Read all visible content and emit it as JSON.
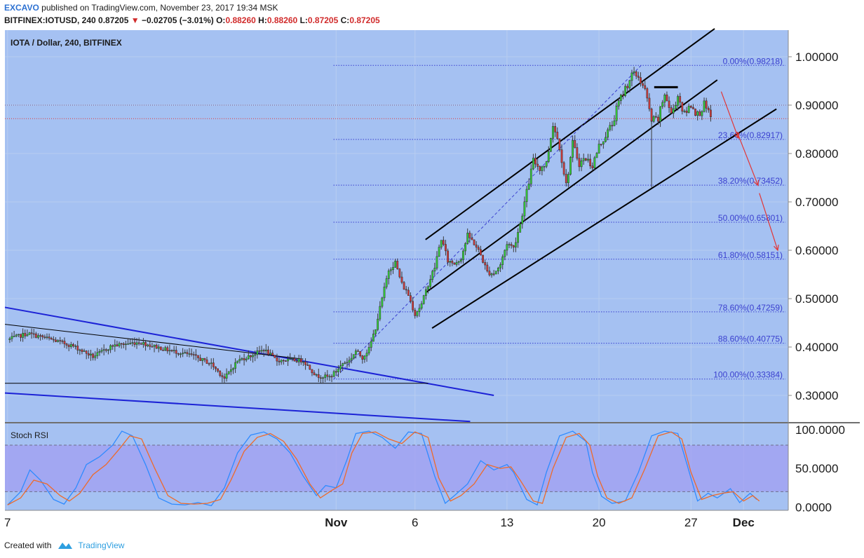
{
  "header": {
    "author": "EXCAVO",
    "published_text": "published on TradingView.com, November 23, 2017 19:34 MSK",
    "symbol": "BITFINEX:IOTUSD, 240",
    "last": "0.87205",
    "change": "−0.02705 (−3.01%)",
    "open_label": "O:",
    "open": "0.88260",
    "high_label": "H:",
    "high": "0.88260",
    "low_label": "L:",
    "low": "0.87205",
    "close_label": "C:",
    "close": "0.87205"
  },
  "footer": {
    "created_with": "Created with",
    "brand": "TradingView"
  },
  "colors": {
    "background": "#a5c1f2",
    "up_candle": "#33d438",
    "down_candle": "#d63a3a",
    "fib": "#3a3fcf",
    "channel": "#000000",
    "wedge": "#1c22d6",
    "stoch_k": "#2f8bff",
    "stoch_d": "#ee6a2a",
    "stoch_band": "#a29ef2",
    "arrow": "#e33535"
  },
  "chart_data": [
    {
      "type": "candlestick",
      "title": "IOTA / Dollar, 240, BITFINEX",
      "ylim": [
        0.245,
        1.055
      ],
      "y_ticks": [
        "1.00000",
        "0.90000",
        "0.80000",
        "0.70000",
        "0.60000",
        "0.50000",
        "0.40000",
        "0.30000"
      ],
      "x_ticks": [
        "7",
        "Nov",
        "6",
        "13",
        "20",
        "27",
        "Dec"
      ],
      "x_tick_days": [
        -25,
        0,
        6,
        13,
        20,
        27,
        31
      ],
      "xlim": [
        -25.2,
        34.4
      ],
      "fib_levels": [
        {
          "label": "0.00%",
          "value": 0.98218
        },
        {
          "label": "23.60%",
          "value": 0.82917
        },
        {
          "label": "38.20%",
          "value": 0.73452
        },
        {
          "label": "50.00%",
          "value": 0.65801
        },
        {
          "label": "61.80%",
          "value": 0.58151
        },
        {
          "label": "78.60%",
          "value": 0.47259
        },
        {
          "label": "88.60%",
          "value": 0.40775
        },
        {
          "label": "100.00%",
          "value": 0.33384
        }
      ],
      "price_path": [
        [
          -25.0,
          0.415
        ],
        [
          -23.5,
          0.428
        ],
        [
          -22.0,
          0.418
        ],
        [
          -20.0,
          0.402
        ],
        [
          -18.5,
          0.38
        ],
        [
          -17.0,
          0.403
        ],
        [
          -15.0,
          0.41
        ],
        [
          -13.0,
          0.395
        ],
        [
          -11.0,
          0.383
        ],
        [
          -9.5,
          0.365
        ],
        [
          -8.5,
          0.335
        ],
        [
          -7.5,
          0.372
        ],
        [
          -6.5,
          0.382
        ],
        [
          -5.5,
          0.395
        ],
        [
          -4.5,
          0.372
        ],
        [
          -3.5,
          0.373
        ],
        [
          -2.5,
          0.372
        ],
        [
          -1.5,
          0.34
        ],
        [
          -0.5,
          0.338
        ],
        [
          0.0,
          0.35
        ],
        [
          0.5,
          0.366
        ],
        [
          1.0,
          0.372
        ],
        [
          1.5,
          0.392
        ],
        [
          2.0,
          0.378
        ],
        [
          2.5,
          0.396
        ],
        [
          3.0,
          0.44
        ],
        [
          3.5,
          0.5
        ],
        [
          4.0,
          0.56
        ],
        [
          4.5,
          0.575
        ],
        [
          5.0,
          0.53
        ],
        [
          5.5,
          0.508
        ],
        [
          6.0,
          0.468
        ],
        [
          6.5,
          0.488
        ],
        [
          7.0,
          0.53
        ],
        [
          7.5,
          0.565
        ],
        [
          8.0,
          0.625
        ],
        [
          8.5,
          0.578
        ],
        [
          9.0,
          0.573
        ],
        [
          9.5,
          0.585
        ],
        [
          10.0,
          0.63
        ],
        [
          10.5,
          0.615
        ],
        [
          11.0,
          0.59
        ],
        [
          11.5,
          0.555
        ],
        [
          12.0,
          0.552
        ],
        [
          12.5,
          0.57
        ],
        [
          13.0,
          0.615
        ],
        [
          13.5,
          0.605
        ],
        [
          14.0,
          0.655
        ],
        [
          14.5,
          0.72
        ],
        [
          15.0,
          0.785
        ],
        [
          15.5,
          0.77
        ],
        [
          16.0,
          0.78
        ],
        [
          16.5,
          0.862
        ],
        [
          17.0,
          0.815
        ],
        [
          17.5,
          0.735
        ],
        [
          18.0,
          0.82
        ],
        [
          18.5,
          0.78
        ],
        [
          19.0,
          0.79
        ],
        [
          19.5,
          0.775
        ],
        [
          20.0,
          0.815
        ],
        [
          20.5,
          0.838
        ],
        [
          21.0,
          0.86
        ],
        [
          21.5,
          0.905
        ],
        [
          22.0,
          0.935
        ],
        [
          22.5,
          0.962
        ],
        [
          23.0,
          0.96
        ],
        [
          23.5,
          0.93
        ],
        [
          24.0,
          0.868
        ],
        [
          24.5,
          0.87
        ],
        [
          25.0,
          0.925
        ],
        [
          25.5,
          0.88
        ],
        [
          26.0,
          0.92
        ],
        [
          26.5,
          0.88
        ],
        [
          27.0,
          0.902
        ],
        [
          27.5,
          0.88
        ],
        [
          28.0,
          0.9
        ],
        [
          28.5,
          0.872
        ]
      ],
      "channel_upper": [
        [
          6.8,
          0.622
        ],
        [
          28.8,
          1.058
        ]
      ],
      "channel_middle": [
        [
          6.8,
          0.512
        ],
        [
          29.0,
          0.952
        ]
      ],
      "channel_lower": [
        [
          7.3,
          0.439
        ],
        [
          33.5,
          0.892
        ]
      ],
      "wedge_upper": [
        [
          -25.2,
          0.482
        ],
        [
          12.0,
          0.3
        ]
      ],
      "wedge_lower": [
        [
          -25.2,
          0.305
        ],
        [
          10.2,
          0.246
        ]
      ],
      "triangle_top": [
        [
          -25.2,
          0.447
        ],
        [
          -2.5,
          0.375
        ]
      ],
      "triangle_base": [
        [
          -25.2,
          0.325
        ],
        [
          7.0,
          0.325
        ]
      ],
      "fib_diagonal": [
        [
          -0.2,
          0.333
        ],
        [
          23.2,
          0.982
        ]
      ],
      "resistance_segment": [
        [
          24.2,
          0.937
        ],
        [
          26.0,
          0.937
        ]
      ],
      "projection_arrows": [
        [
          [
            29.3,
            0.928
          ],
          [
            30.6,
            0.832
          ]
        ],
        [
          [
            30.5,
            0.845
          ],
          [
            32.1,
            0.734
          ]
        ],
        [
          [
            32.2,
            0.718
          ],
          [
            33.6,
            0.6
          ]
        ]
      ]
    },
    {
      "type": "line",
      "title": "Stoch RSI",
      "ylim": [
        -4,
        108
      ],
      "y_ticks": [
        "100.0000",
        "50.0000",
        "0.0000"
      ],
      "band": [
        20,
        80
      ],
      "series": [
        {
          "name": "",
          "points": [
            [
              -25,
              3
            ],
            [
              -24,
              20
            ],
            [
              -23.3,
              48
            ],
            [
              -22.5,
              35
            ],
            [
              -21.5,
              10
            ],
            [
              -20.7,
              4
            ],
            [
              -19.8,
              25
            ],
            [
              -19,
              55
            ],
            [
              -18,
              65
            ],
            [
              -17,
              80
            ],
            [
              -16.3,
              98
            ],
            [
              -15.5,
              92
            ],
            [
              -14.5,
              55
            ],
            [
              -13.5,
              12
            ],
            [
              -12.5,
              4
            ],
            [
              -11.5,
              3
            ],
            [
              -10.5,
              6
            ],
            [
              -9.5,
              2
            ],
            [
              -8.5,
              25
            ],
            [
              -7.5,
              70
            ],
            [
              -6.5,
              93
            ],
            [
              -5.5,
              97
            ],
            [
              -4.5,
              88
            ],
            [
              -3.5,
              70
            ],
            [
              -2.5,
              40
            ],
            [
              -1.5,
              15
            ],
            [
              -0.8,
              28
            ],
            [
              0,
              25
            ],
            [
              0.8,
              60
            ],
            [
              1.5,
              95
            ],
            [
              2.5,
              98
            ],
            [
              3.5,
              90
            ],
            [
              4.5,
              76
            ],
            [
              5.5,
              97
            ],
            [
              6.5,
              95
            ],
            [
              7.5,
              40
            ],
            [
              8.3,
              5
            ],
            [
              9,
              15
            ],
            [
              10,
              30
            ],
            [
              11,
              60
            ],
            [
              12,
              48
            ],
            [
              13,
              55
            ],
            [
              13.5,
              45
            ],
            [
              14.5,
              10
            ],
            [
              15.3,
              3
            ],
            [
              16,
              45
            ],
            [
              17,
              92
            ],
            [
              18,
              98
            ],
            [
              19,
              85
            ],
            [
              19.5,
              45
            ],
            [
              20.2,
              14
            ],
            [
              21,
              5
            ],
            [
              22,
              8
            ],
            [
              23,
              45
            ],
            [
              24,
              92
            ],
            [
              25,
              98
            ],
            [
              26,
              95
            ],
            [
              26.7,
              55
            ],
            [
              27.5,
              8
            ],
            [
              28.3,
              18
            ],
            [
              29,
              12
            ],
            [
              30,
              24
            ],
            [
              30.7,
              6
            ],
            [
              31.5,
              18
            ],
            [
              32,
              10
            ]
          ]
        },
        {
          "name": "",
          "points": [
            [
              -25,
              3
            ],
            [
              -24,
              12
            ],
            [
              -23,
              35
            ],
            [
              -22,
              30
            ],
            [
              -21,
              15
            ],
            [
              -20.3,
              8
            ],
            [
              -19.5,
              18
            ],
            [
              -18.5,
              42
            ],
            [
              -17.5,
              55
            ],
            [
              -16.5,
              75
            ],
            [
              -15.7,
              92
            ],
            [
              -14.8,
              88
            ],
            [
              -13.8,
              50
            ],
            [
              -12.8,
              15
            ],
            [
              -11.8,
              5
            ],
            [
              -10.8,
              4
            ],
            [
              -9.8,
              5
            ],
            [
              -8.8,
              10
            ],
            [
              -8,
              35
            ],
            [
              -7,
              72
            ],
            [
              -6,
              90
            ],
            [
              -5,
              95
            ],
            [
              -4,
              85
            ],
            [
              -3,
              62
            ],
            [
              -2,
              30
            ],
            [
              -1.2,
              12
            ],
            [
              -0.3,
              22
            ],
            [
              0.5,
              30
            ],
            [
              1.2,
              70
            ],
            [
              2,
              95
            ],
            [
              3,
              97
            ],
            [
              4,
              88
            ],
            [
              5,
              82
            ],
            [
              6,
              97
            ],
            [
              7,
              90
            ],
            [
              7.8,
              38
            ],
            [
              8.7,
              8
            ],
            [
              9.5,
              15
            ],
            [
              10.5,
              30
            ],
            [
              11.5,
              55
            ],
            [
              12.5,
              50
            ],
            [
              13.3,
              52
            ],
            [
              14,
              35
            ],
            [
              15,
              8
            ],
            [
              15.7,
              5
            ],
            [
              16.5,
              50
            ],
            [
              17.5,
              90
            ],
            [
              18.5,
              95
            ],
            [
              19.3,
              80
            ],
            [
              19.9,
              40
            ],
            [
              20.6,
              12
            ],
            [
              21.5,
              5
            ],
            [
              22.5,
              12
            ],
            [
              23.5,
              50
            ],
            [
              24.5,
              92
            ],
            [
              25.5,
              97
            ],
            [
              26.3,
              88
            ],
            [
              27,
              45
            ],
            [
              27.8,
              10
            ],
            [
              28.6,
              15
            ],
            [
              29.4,
              18
            ],
            [
              30.2,
              20
            ],
            [
              31,
              8
            ],
            [
              31.7,
              15
            ],
            [
              32.2,
              8
            ]
          ]
        }
      ]
    }
  ]
}
